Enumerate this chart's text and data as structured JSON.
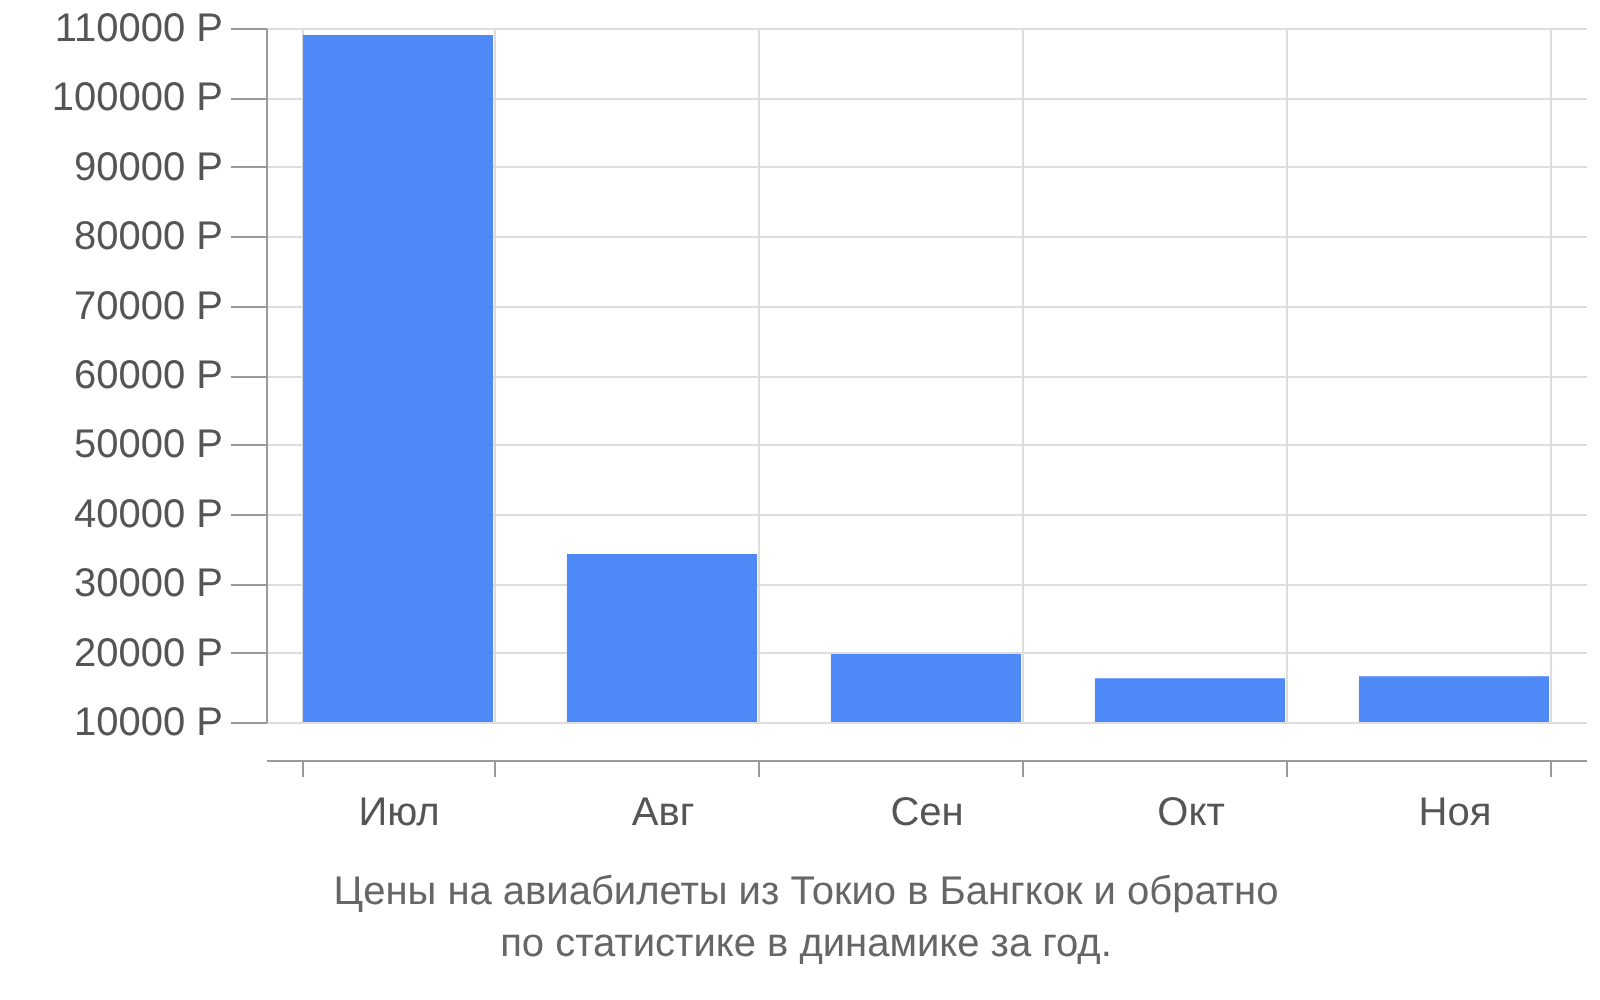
{
  "chart_data": {
    "type": "bar",
    "title": "Цены на авиабилеты из Токио в Бангкок и обратно\nпо статистике в динамике за год.",
    "categories": [
      "Июл",
      "Авг",
      "Сен",
      "Окт",
      "Ноя"
    ],
    "values": [
      109000,
      34200,
      19800,
      16300,
      16600
    ],
    "color": "#4f89f8",
    "ylim": [
      10000,
      110000
    ],
    "yticks": [
      {
        "value": 10000,
        "label": "10000 Р"
      },
      {
        "value": 20000,
        "label": "20000 Р"
      },
      {
        "value": 30000,
        "label": "30000 Р"
      },
      {
        "value": 40000,
        "label": "40000 Р"
      },
      {
        "value": 50000,
        "label": "50000 Р"
      },
      {
        "value": 60000,
        "label": "60000 Р"
      },
      {
        "value": 70000,
        "label": "70000 Р"
      },
      {
        "value": 80000,
        "label": "80000 Р"
      },
      {
        "value": 90000,
        "label": "90000 Р"
      },
      {
        "value": 100000,
        "label": "100000 Р"
      },
      {
        "value": 110000,
        "label": "110000 Р"
      }
    ],
    "grid": true
  }
}
